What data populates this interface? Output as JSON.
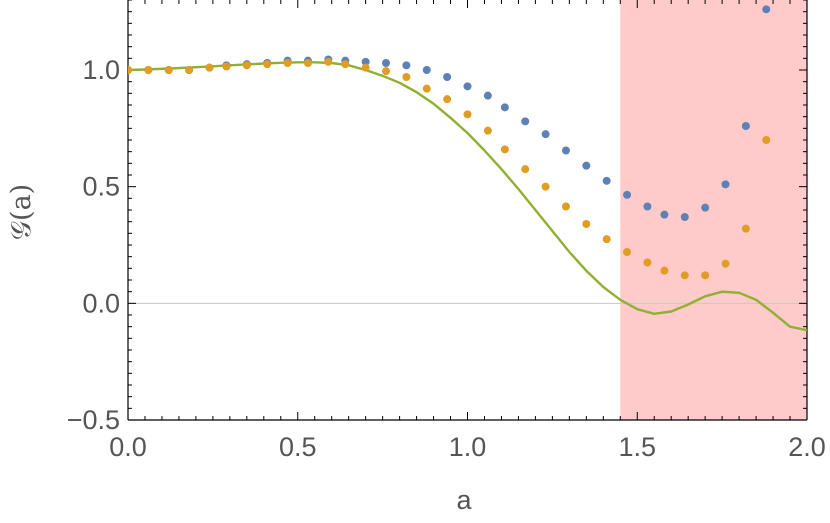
{
  "chart_data": {
    "type": "scatter",
    "xlabel": "a",
    "ylabel": "𝒢(a)",
    "xlim": [
      0.0,
      2.0
    ],
    "ylim": [
      -0.5,
      1.3
    ],
    "x_ticks": [
      "0.0",
      "0.5",
      "1.0",
      "1.5",
      "2.0"
    ],
    "y_ticks": [
      "−0.5",
      "0.0",
      "0.5",
      "1.0"
    ],
    "shaded_region": {
      "x_start": 1.45,
      "x_end": 2.0,
      "color": "#FFCACA"
    },
    "reference_line": {
      "y": 0.0,
      "color": "#c8c8c8"
    },
    "series": [
      {
        "color": "#5E81B5",
        "kind": "points",
        "points": [
          [
            0.0,
            1.0
          ],
          [
            0.06,
            1.0
          ],
          [
            0.12,
            1.0
          ],
          [
            0.18,
            1.0
          ],
          [
            0.24,
            1.01
          ],
          [
            0.29,
            1.02
          ],
          [
            0.35,
            1.025
          ],
          [
            0.41,
            1.03
          ],
          [
            0.47,
            1.04
          ],
          [
            0.53,
            1.04
          ],
          [
            0.59,
            1.045
          ],
          [
            0.64,
            1.04
          ],
          [
            0.7,
            1.035
          ],
          [
            0.76,
            1.03
          ],
          [
            0.82,
            1.02
          ],
          [
            0.88,
            1.0
          ],
          [
            0.94,
            0.97
          ],
          [
            1.0,
            0.93
          ],
          [
            1.06,
            0.89
          ],
          [
            1.11,
            0.84
          ],
          [
            1.17,
            0.78
          ],
          [
            1.23,
            0.725
          ],
          [
            1.29,
            0.655
          ],
          [
            1.35,
            0.59
          ],
          [
            1.41,
            0.525
          ],
          [
            1.47,
            0.465
          ],
          [
            1.53,
            0.415
          ],
          [
            1.58,
            0.38
          ],
          [
            1.64,
            0.37
          ],
          [
            1.7,
            0.41
          ],
          [
            1.76,
            0.51
          ],
          [
            1.82,
            0.76
          ],
          [
            1.88,
            1.26
          ]
        ]
      },
      {
        "color": "#E19C24",
        "kind": "points",
        "points": [
          [
            0.0,
            1.0
          ],
          [
            0.06,
            1.0
          ],
          [
            0.12,
            1.0
          ],
          [
            0.18,
            1.0
          ],
          [
            0.24,
            1.01
          ],
          [
            0.29,
            1.015
          ],
          [
            0.35,
            1.02
          ],
          [
            0.41,
            1.025
          ],
          [
            0.47,
            1.03
          ],
          [
            0.53,
            1.03
          ],
          [
            0.59,
            1.035
          ],
          [
            0.64,
            1.025
          ],
          [
            0.7,
            1.01
          ],
          [
            0.76,
            0.995
          ],
          [
            0.82,
            0.97
          ],
          [
            0.88,
            0.92
          ],
          [
            0.94,
            0.875
          ],
          [
            1.0,
            0.81
          ],
          [
            1.06,
            0.74
          ],
          [
            1.11,
            0.66
          ],
          [
            1.17,
            0.575
          ],
          [
            1.23,
            0.5
          ],
          [
            1.29,
            0.415
          ],
          [
            1.35,
            0.34
          ],
          [
            1.41,
            0.275
          ],
          [
            1.47,
            0.22
          ],
          [
            1.53,
            0.175
          ],
          [
            1.58,
            0.14
          ],
          [
            1.64,
            0.12
          ],
          [
            1.7,
            0.12
          ],
          [
            1.76,
            0.17
          ],
          [
            1.82,
            0.32
          ],
          [
            1.88,
            0.7
          ]
        ]
      },
      {
        "color": "#8FB032",
        "kind": "line",
        "points": [
          [
            0.0,
            1.0
          ],
          [
            0.05,
            1.002
          ],
          [
            0.1,
            1.005
          ],
          [
            0.15,
            1.008
          ],
          [
            0.2,
            1.012
          ],
          [
            0.25,
            1.016
          ],
          [
            0.3,
            1.02
          ],
          [
            0.35,
            1.024
          ],
          [
            0.4,
            1.028
          ],
          [
            0.45,
            1.031
          ],
          [
            0.5,
            1.033
          ],
          [
            0.55,
            1.033
          ],
          [
            0.6,
            1.03
          ],
          [
            0.65,
            1.02
          ],
          [
            0.7,
            1.0
          ],
          [
            0.75,
            0.975
          ],
          [
            0.8,
            0.945
          ],
          [
            0.85,
            0.905
          ],
          [
            0.9,
            0.855
          ],
          [
            0.95,
            0.795
          ],
          [
            1.0,
            0.73
          ],
          [
            1.05,
            0.655
          ],
          [
            1.1,
            0.575
          ],
          [
            1.15,
            0.49
          ],
          [
            1.2,
            0.4
          ],
          [
            1.25,
            0.31
          ],
          [
            1.3,
            0.22
          ],
          [
            1.35,
            0.14
          ],
          [
            1.4,
            0.07
          ],
          [
            1.45,
            0.015
          ],
          [
            1.5,
            -0.025
          ],
          [
            1.55,
            -0.045
          ],
          [
            1.6,
            -0.035
          ],
          [
            1.65,
            -0.005
          ],
          [
            1.7,
            0.03
          ],
          [
            1.75,
            0.05
          ],
          [
            1.8,
            0.045
          ],
          [
            1.85,
            0.015
          ],
          [
            1.9,
            -0.04
          ],
          [
            1.95,
            -0.1
          ],
          [
            2.0,
            -0.115
          ]
        ]
      }
    ]
  }
}
